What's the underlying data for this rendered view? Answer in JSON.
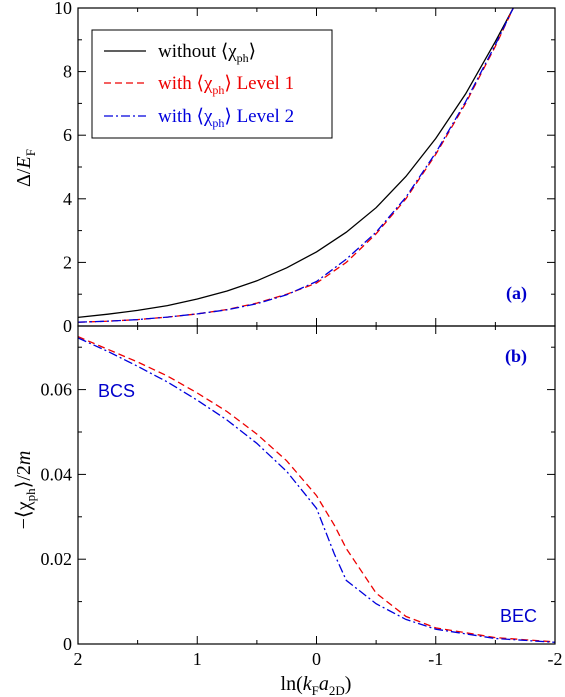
{
  "colors": {
    "black": "#000000",
    "red": "#ee0000",
    "blue": "#0000dd",
    "label_blue": "#0000cc"
  },
  "xaxis": {
    "ticks": [
      2,
      1,
      0,
      -1,
      -2
    ],
    "tick_labels": [
      "2",
      "1",
      "0",
      "-1",
      "-2"
    ],
    "label_pre": "ln(",
    "label_k": "k",
    "label_F": "F",
    "label_a": "a",
    "label_2D": "2D",
    "label_post": ")"
  },
  "chart_data": [
    {
      "type": "line",
      "panel_label": "(a)",
      "ylabel": {
        "pre": "Δ/",
        "E": "E",
        "sub": "F"
      },
      "xlim": [
        2,
        -2
      ],
      "ylim": [
        0,
        10
      ],
      "yticks": [
        0,
        2,
        4,
        6,
        8,
        10
      ],
      "ytick_labels": [
        "0",
        "2",
        "4",
        "6",
        "8",
        "10"
      ],
      "legend": {
        "placement": "top-left",
        "entries": [
          {
            "pre": "without ",
            "chi": "⟨χ",
            "sub": "ph",
            "close": "⟩",
            "post": ""
          },
          {
            "pre": "with ",
            "chi": "⟨χ",
            "sub": "ph",
            "close": "⟩",
            "post": " Level 1"
          },
          {
            "pre": "with ",
            "chi": "⟨χ",
            "sub": "ph",
            "close": "⟩",
            "post": " Level 2"
          }
        ]
      },
      "series": [
        {
          "style": "solid",
          "color": "#000000",
          "x": [
            2.0,
            1.75,
            1.5,
            1.25,
            1.0,
            0.75,
            0.5,
            0.25,
            0.0,
            -0.25,
            -0.5,
            -0.75,
            -1.0,
            -1.25,
            -1.5,
            -1.65
          ],
          "y": [
            0.27,
            0.37,
            0.49,
            0.64,
            0.85,
            1.1,
            1.42,
            1.83,
            2.33,
            2.95,
            3.72,
            4.7,
            5.9,
            7.3,
            8.95,
            10.0
          ]
        },
        {
          "style": "dashed",
          "color": "#ee0000",
          "x": [
            2.0,
            1.75,
            1.5,
            1.25,
            1.0,
            0.75,
            0.5,
            0.25,
            0.0,
            -0.25,
            -0.5,
            -0.75,
            -1.0,
            -1.25,
            -1.5,
            -1.65
          ],
          "y": [
            0.12,
            0.15,
            0.2,
            0.28,
            0.38,
            0.52,
            0.72,
            1.0,
            1.35,
            2.0,
            2.9,
            4.0,
            5.4,
            7.0,
            8.8,
            10.0
          ]
        },
        {
          "style": "dashdot",
          "color": "#0000dd",
          "x": [
            2.0,
            1.75,
            1.5,
            1.25,
            1.0,
            0.75,
            0.5,
            0.25,
            0.0,
            -0.25,
            -0.5,
            -0.75,
            -1.0,
            -1.25,
            -1.5,
            -1.65
          ],
          "y": [
            0.12,
            0.15,
            0.2,
            0.28,
            0.38,
            0.51,
            0.7,
            0.98,
            1.4,
            2.1,
            2.95,
            4.05,
            5.45,
            7.05,
            8.85,
            10.0
          ]
        }
      ]
    },
    {
      "type": "line",
      "panel_label": "(b)",
      "ylabel": {
        "pre": "−⟨χ",
        "sub": "ph",
        "post": "⟩/2",
        "m": "m"
      },
      "xlim": [
        2,
        -2
      ],
      "ylim": [
        0,
        0.075
      ],
      "yticks": [
        0,
        0.02,
        0.04,
        0.06
      ],
      "ytick_labels": [
        "0",
        "0.02",
        "0.04",
        "0.06"
      ],
      "annotations": [
        "BCS",
        "BEC"
      ],
      "series": [
        {
          "style": "dashed",
          "color": "#ee0000",
          "x": [
            2.0,
            1.75,
            1.5,
            1.25,
            1.0,
            0.75,
            0.5,
            0.25,
            0.0,
            -0.15,
            -0.25,
            -0.5,
            -0.75,
            -1.0,
            -1.5,
            -2.0
          ],
          "y": [
            0.0725,
            0.0695,
            0.0665,
            0.0632,
            0.0592,
            0.0548,
            0.0495,
            0.0432,
            0.035,
            0.028,
            0.0225,
            0.012,
            0.0065,
            0.0038,
            0.0015,
            0.0005
          ]
        },
        {
          "style": "dashdot",
          "color": "#0000dd",
          "x": [
            2.0,
            1.75,
            1.5,
            1.25,
            1.0,
            0.75,
            0.5,
            0.25,
            0.0,
            -0.15,
            -0.25,
            -0.5,
            -0.75,
            -1.0,
            -1.5,
            -2.0
          ],
          "y": [
            0.0722,
            0.069,
            0.0655,
            0.0618,
            0.0575,
            0.0528,
            0.0473,
            0.0407,
            0.032,
            0.0212,
            0.015,
            0.0095,
            0.0058,
            0.0035,
            0.0013,
            0.0004
          ]
        }
      ]
    }
  ]
}
